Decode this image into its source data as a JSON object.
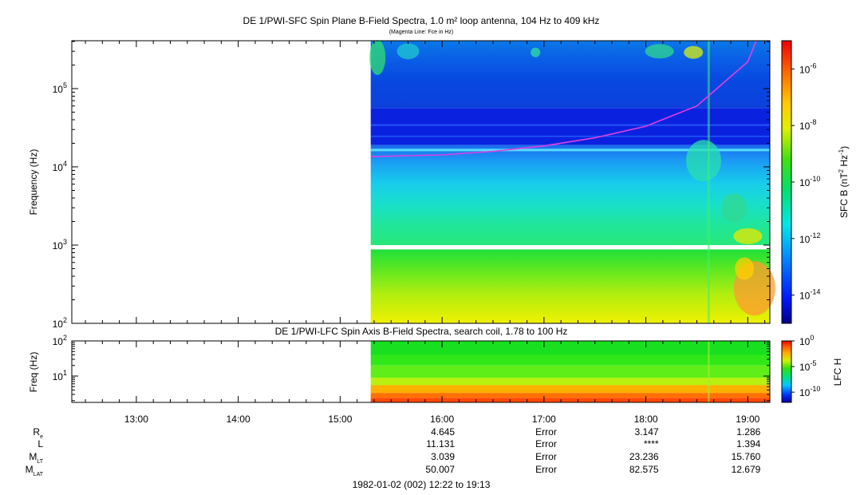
{
  "chart_data": [
    {
      "type": "heatmap",
      "title": "DE 1/PWI-SFC  Spin Plane B-Field Spectra, 1.0 m² loop antenna, 104 Hz to 409 kHz",
      "subtitle": "(Magenta Line: Fce in Hz)",
      "ylabel": "Frequency (Hz)",
      "y_scale": "log",
      "ylim": [
        100,
        409000
      ],
      "y_ticks": [
        {
          "value": 100,
          "base": "10",
          "exp": "2"
        },
        {
          "value": 1000,
          "base": "10",
          "exp": "3"
        },
        {
          "value": 10000,
          "base": "10",
          "exp": "4"
        },
        {
          "value": 100000,
          "base": "10",
          "exp": "5"
        }
      ],
      "data_start_time": "15:18",
      "colorbar": {
        "label_main": "SFC B (nT",
        "label_exp1": "2",
        "label_mid": " Hz",
        "label_exp2": "-1",
        "label_end": ")",
        "scale": "log",
        "range": [
          "1e-15",
          "1e-5"
        ],
        "ticks": [
          {
            "base": "10",
            "exp": "-6",
            "value": -6
          },
          {
            "base": "10",
            "exp": "-8",
            "value": -8
          },
          {
            "base": "10",
            "exp": "-10",
            "value": -10
          },
          {
            "base": "10",
            "exp": "-12",
            "value": -12
          },
          {
            "base": "10",
            "exp": "-14",
            "value": -14
          }
        ]
      },
      "fce_line_color": "#e040e0",
      "fce_curve": [
        {
          "time": "15:18",
          "hz": 13500
        },
        {
          "time": "16:00",
          "hz": 14200
        },
        {
          "time": "16:30",
          "hz": 15800
        },
        {
          "time": "17:00",
          "hz": 18500
        },
        {
          "time": "17:30",
          "hz": 23500
        },
        {
          "time": "18:00",
          "hz": 33000
        },
        {
          "time": "18:30",
          "hz": 60000
        },
        {
          "time": "19:00",
          "hz": 220000
        },
        {
          "time": "19:05",
          "hz": 409000
        }
      ]
    },
    {
      "type": "heatmap",
      "title": "DE 1/PWI-LFC  Spin Axis B-Field Spectra, search coil, 1.78 to 100 Hz",
      "ylabel": "Freq (Hz)",
      "y_scale": "log",
      "ylim": [
        1.78,
        100
      ],
      "y_ticks": [
        {
          "value": 10,
          "base": "10",
          "exp": "1"
        },
        {
          "value": 100,
          "base": "10",
          "exp": "2"
        }
      ],
      "colorbar": {
        "label": "LFC H",
        "scale": "log",
        "ticks": [
          {
            "base": "10",
            "exp": "0",
            "value": 0
          },
          {
            "base": "10",
            "exp": "-5",
            "value": -5
          },
          {
            "base": "10",
            "exp": "-10",
            "value": -10
          }
        ]
      },
      "bands": [
        {
          "from_hz": 100,
          "to_hz": 40,
          "color": "#18e020"
        },
        {
          "from_hz": 40,
          "to_hz": 20,
          "color": "#30e818"
        },
        {
          "from_hz": 20,
          "to_hz": 9,
          "color": "#60ee18"
        },
        {
          "from_hz": 9,
          "to_hz": 5.5,
          "color": "#b8f010"
        },
        {
          "from_hz": 5.5,
          "to_hz": 3.3,
          "color": "#ffb000"
        },
        {
          "from_hz": 3.3,
          "to_hz": 2.4,
          "color": "#ff7000"
        },
        {
          "from_hz": 2.4,
          "to_hz": 1.78,
          "color": "#ff4800"
        }
      ]
    }
  ],
  "x_axis": {
    "time_start": "12:22",
    "time_end": "19:13",
    "tick_labels": [
      "13:00",
      "14:00",
      "15:00",
      "16:00",
      "17:00",
      "18:00",
      "19:00"
    ]
  },
  "ephemeris": {
    "rows": [
      {
        "label": "R",
        "sub": "e",
        "values": [
          "4.645",
          "Error",
          "3.147",
          "1.286"
        ]
      },
      {
        "label": "L",
        "sub": "",
        "values": [
          "11.131",
          "Error",
          "****",
          "1.394"
        ]
      },
      {
        "label": "M",
        "sub": "LT",
        "values": [
          "3.039",
          "Error",
          "23.236",
          "15.760"
        ]
      },
      {
        "label": "M",
        "sub": "LAT",
        "values": [
          "50.007",
          "Error",
          "82.575",
          "12.679"
        ]
      }
    ],
    "value_times": [
      "16:00",
      "17:00",
      "18:00",
      "19:00"
    ]
  },
  "footer": "1982-01-02 (002) 12:22 to 19:13"
}
